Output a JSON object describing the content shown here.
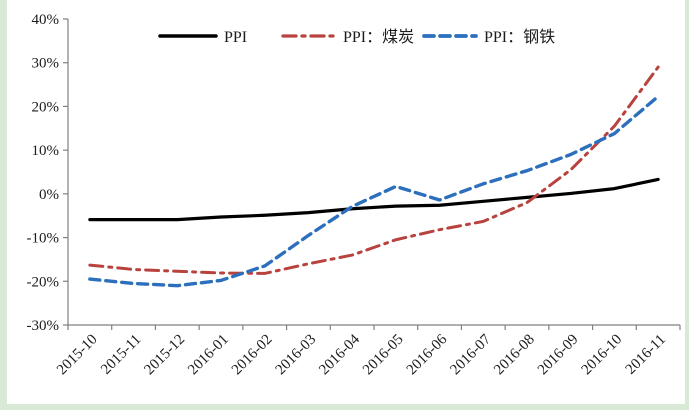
{
  "page": {
    "frame_color": "#d8e9d6",
    "chart_background": "#ffffff",
    "axis_color": "#808080",
    "text_color": "#1c1c1c"
  },
  "chart_data": {
    "type": "line",
    "title": "",
    "xlabel": "",
    "ylabel": "",
    "grid": false,
    "legend_position": "top-center",
    "ylim": [
      -30,
      40
    ],
    "ytick_step": 10,
    "yticklabels": [
      "40%",
      "30%",
      "20%",
      "10%",
      "0%",
      "-10%",
      "-20%",
      "-30%"
    ],
    "categories": [
      "2015-10",
      "2015-11",
      "2015-12",
      "2016-01",
      "2016-02",
      "2016-03",
      "2016-04",
      "2016-05",
      "2016-06",
      "2016-07",
      "2016-08",
      "2016-09",
      "2016-10",
      "2016-11"
    ],
    "series": [
      {
        "name": "PPI",
        "color": "#000000",
        "style": "solid",
        "width": 3.2,
        "values": [
          -5.9,
          -5.9,
          -5.9,
          -5.3,
          -4.9,
          -4.3,
          -3.4,
          -2.8,
          -2.6,
          -1.7,
          -0.8,
          0.1,
          1.2,
          3.3
        ]
      },
      {
        "name": "PPI：煤炭",
        "color": "#b8433e",
        "style": "dash-dot",
        "width": 3,
        "values": [
          -16.3,
          -17.3,
          -17.7,
          -18.1,
          -18.2,
          -16.0,
          -14.0,
          -10.5,
          -8.2,
          -6.3,
          -2.0,
          5.5,
          15.5,
          29.0
        ]
      },
      {
        "name": "PPI：钢铁",
        "color": "#2c6fbd",
        "style": "dashed",
        "width": 3.4,
        "values": [
          -19.5,
          -20.5,
          -21.0,
          -19.8,
          -16.5,
          -9.5,
          -2.9,
          1.7,
          -1.4,
          2.3,
          5.3,
          9.0,
          13.8,
          22.3
        ]
      }
    ]
  }
}
